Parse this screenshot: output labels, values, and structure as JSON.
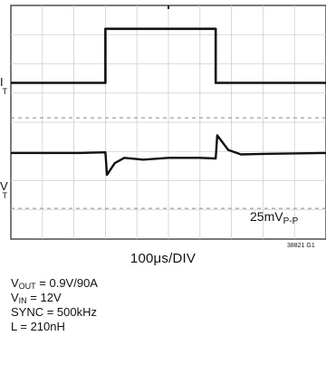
{
  "chart_data": {
    "type": "line",
    "title": "",
    "xlabel": "100μs/DIV",
    "ylabel": "",
    "grid": true,
    "x_divisions": 10,
    "y_divisions": 8,
    "x_unit": "div",
    "y_unit": "div",
    "xlim": [
      0,
      10
    ],
    "ylim": [
      0,
      8
    ],
    "series": [
      {
        "label_main": "I",
        "label_sub": "T",
        "points": [
          [
            0,
            5.35
          ],
          [
            3.0,
            5.35
          ],
          [
            3.0,
            7.2
          ],
          [
            6.5,
            7.2
          ],
          [
            6.5,
            5.35
          ],
          [
            10,
            5.35
          ]
        ]
      },
      {
        "label_main": "V",
        "label_sub": "T",
        "points": [
          [
            0,
            2.95
          ],
          [
            2.2,
            2.95
          ],
          [
            3.0,
            2.97
          ],
          [
            3.05,
            2.2
          ],
          [
            3.3,
            2.6
          ],
          [
            3.6,
            2.78
          ],
          [
            4.2,
            2.72
          ],
          [
            5.0,
            2.78
          ],
          [
            6.0,
            2.78
          ],
          [
            6.5,
            2.76
          ],
          [
            6.55,
            3.55
          ],
          [
            6.9,
            3.05
          ],
          [
            7.3,
            2.9
          ],
          [
            8.2,
            2.92
          ],
          [
            10,
            2.95
          ]
        ]
      }
    ],
    "reference_levels": [
      4.15,
      1.05
    ],
    "annotation": {
      "text_main": "25mV",
      "text_sub": "P-P"
    }
  },
  "figure_id": "38821 G1",
  "conditions": [
    {
      "main": "V",
      "sub": "OUT",
      "rest": " = 0.9V/90A"
    },
    {
      "main": "V",
      "sub": "IN",
      "rest": " = 12V"
    },
    {
      "main": "SYNC = 500kHz",
      "sub": "",
      "rest": ""
    },
    {
      "main": "L = 210nH",
      "sub": "",
      "rest": ""
    }
  ]
}
